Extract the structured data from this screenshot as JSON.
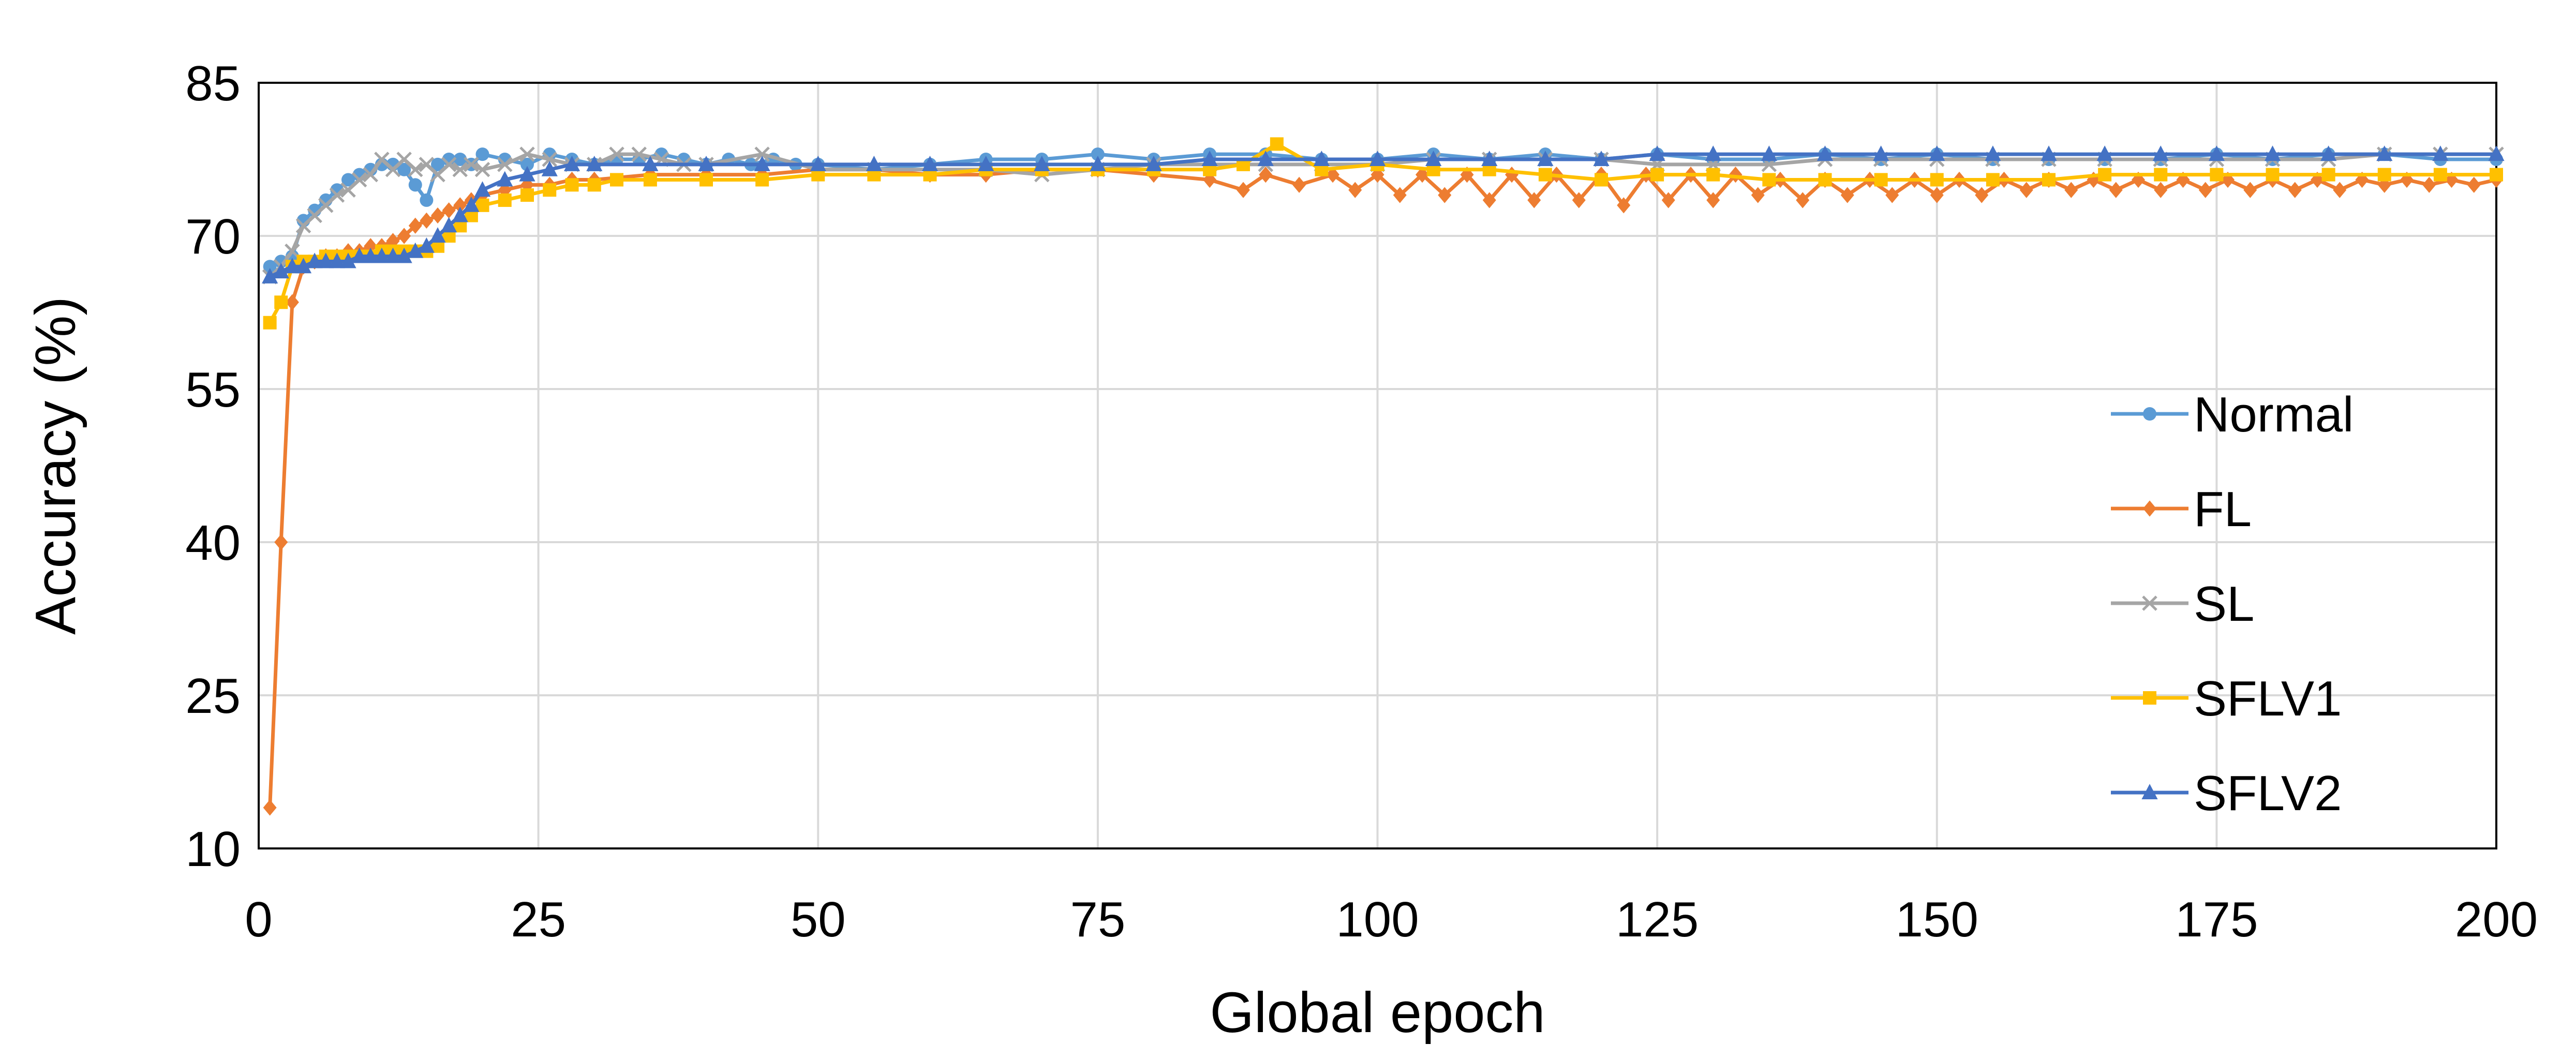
{
  "chart_data": {
    "type": "line",
    "title": "",
    "xlabel": "Global epoch",
    "ylabel": "Accuracy (%)",
    "xlim": [
      0,
      200
    ],
    "ylim": [
      10,
      85
    ],
    "x_ticks": [
      "0",
      "25",
      "50",
      "75",
      "100",
      "125",
      "150",
      "175",
      "200"
    ],
    "y_ticks": [
      "10",
      "25",
      "40",
      "55",
      "70",
      "85"
    ],
    "grid": true,
    "legend_position": "right",
    "series": [
      {
        "name": "Normal",
        "color": "#5B9BD5",
        "marker": "circle",
        "x": [
          1,
          2,
          3,
          4,
          5,
          6,
          7,
          8,
          9,
          10,
          11,
          12,
          13,
          14,
          15,
          16,
          17,
          18,
          19,
          20,
          22,
          24,
          26,
          28,
          30,
          32,
          34,
          36,
          38,
          40,
          42,
          44,
          46,
          48,
          50,
          55,
          60,
          65,
          70,
          75,
          80,
          85,
          90,
          95,
          100,
          105,
          110,
          115,
          120,
          125,
          130,
          135,
          140,
          145,
          150,
          155,
          160,
          165,
          170,
          175,
          180,
          185,
          190,
          195,
          200
        ],
        "y": [
          67,
          67.5,
          68,
          71.5,
          72.5,
          73.5,
          74.5,
          75.5,
          76,
          76.5,
          77,
          77,
          76.5,
          75,
          73.5,
          77,
          77.5,
          77.5,
          77,
          78,
          77.5,
          77,
          78,
          77.5,
          77,
          77.5,
          77.5,
          78,
          77.5,
          77,
          77.5,
          77,
          77.5,
          77,
          77,
          76.5,
          77,
          77.5,
          77.5,
          78,
          77.5,
          78,
          78,
          77.5,
          77.5,
          78,
          77.5,
          78,
          77.5,
          78,
          77.5,
          77.5,
          78,
          77.5,
          78,
          77.5,
          77.5,
          77.5,
          77.5,
          78,
          77.5,
          78,
          78,
          77.5,
          77.5
        ]
      },
      {
        "name": "FL",
        "color": "#ED7D31",
        "marker": "diamond",
        "x": [
          1,
          2,
          3,
          4,
          5,
          6,
          7,
          8,
          9,
          10,
          11,
          12,
          13,
          14,
          15,
          16,
          17,
          18,
          19,
          20,
          22,
          24,
          26,
          28,
          30,
          35,
          40,
          45,
          50,
          55,
          60,
          65,
          70,
          75,
          80,
          85,
          88,
          90,
          93,
          96,
          98,
          100,
          102,
          104,
          106,
          108,
          110,
          112,
          114,
          116,
          118,
          120,
          122,
          124,
          126,
          128,
          130,
          132,
          134,
          136,
          138,
          140,
          142,
          144,
          146,
          148,
          150,
          152,
          154,
          156,
          158,
          160,
          162,
          164,
          166,
          168,
          170,
          172,
          174,
          176,
          178,
          180,
          182,
          184,
          186,
          188,
          190,
          192,
          194,
          196,
          198,
          200
        ],
        "y": [
          14,
          40,
          63.5,
          67,
          67.5,
          68,
          68,
          68.5,
          68.5,
          69,
          69,
          69.5,
          70,
          71,
          71.5,
          72,
          72.5,
          73,
          73.5,
          74,
          74.5,
          75,
          75,
          75.5,
          75.5,
          76,
          76,
          76,
          76.5,
          76.5,
          76,
          76,
          76.5,
          76.5,
          76,
          75.5,
          74.5,
          76,
          75,
          76,
          74.5,
          76,
          74,
          76,
          74,
          76,
          73.5,
          76,
          73.5,
          76,
          73.5,
          76,
          73,
          76,
          73.5,
          76,
          73.5,
          76,
          74,
          75.5,
          73.5,
          75.5,
          74,
          75.5,
          74,
          75.5,
          74,
          75.5,
          74,
          75.5,
          74.5,
          75.5,
          74.5,
          75.5,
          74.5,
          75.5,
          74.5,
          75.5,
          74.5,
          75.5,
          74.5,
          75.5,
          74.5,
          75.5,
          74.5,
          75.5,
          75,
          75.5,
          75,
          75.5,
          75,
          75.5
        ]
      },
      {
        "name": "SL",
        "color": "#A5A5A5",
        "marker": "x",
        "x": [
          1,
          2,
          3,
          4,
          5,
          6,
          7,
          8,
          9,
          10,
          11,
          12,
          13,
          14,
          15,
          16,
          17,
          18,
          19,
          20,
          22,
          24,
          26,
          28,
          30,
          32,
          34,
          36,
          38,
          40,
          45,
          50,
          55,
          60,
          65,
          70,
          75,
          80,
          85,
          90,
          95,
          100,
          105,
          110,
          115,
          120,
          125,
          130,
          135,
          140,
          145,
          150,
          155,
          160,
          165,
          170,
          175,
          180,
          185,
          190,
          195,
          200
        ],
        "y": [
          66,
          67,
          68.5,
          71,
          72,
          73,
          74,
          74.5,
          75.5,
          76,
          77.5,
          76.5,
          77.5,
          76.5,
          77,
          76,
          77,
          76.5,
          77,
          76.5,
          77,
          78,
          77.5,
          77,
          77,
          78,
          78,
          77.5,
          77,
          77,
          78,
          76.5,
          76.5,
          76.5,
          76.5,
          76,
          76.5,
          77,
          77,
          77,
          77,
          77,
          77.5,
          77.5,
          77.5,
          77.5,
          77,
          77,
          77,
          77.5,
          77.5,
          77.5,
          77.5,
          77.5,
          77.5,
          77.5,
          77.5,
          77.5,
          77.5,
          78,
          78,
          78
        ]
      },
      {
        "name": "SFLV1",
        "color": "#FFC000",
        "marker": "square",
        "x": [
          1,
          2,
          3,
          4,
          5,
          6,
          7,
          8,
          9,
          10,
          11,
          12,
          13,
          14,
          15,
          16,
          17,
          18,
          19,
          20,
          22,
          24,
          26,
          28,
          30,
          32,
          35,
          40,
          45,
          50,
          55,
          60,
          65,
          70,
          75,
          80,
          85,
          88,
          91,
          95,
          100,
          105,
          110,
          115,
          120,
          125,
          130,
          135,
          140,
          145,
          150,
          155,
          160,
          165,
          170,
          175,
          180,
          185,
          190,
          195,
          200
        ],
        "y": [
          61.5,
          63.5,
          67,
          67.5,
          67.5,
          68,
          68,
          68,
          68,
          68,
          68.5,
          68.5,
          68.5,
          68.5,
          68.5,
          69,
          70,
          71,
          72,
          73,
          73.5,
          74,
          74.5,
          75,
          75,
          75.5,
          75.5,
          75.5,
          75.5,
          76,
          76,
          76,
          76.5,
          76.5,
          76.5,
          76.5,
          76.5,
          77,
          79,
          76.5,
          77,
          76.5,
          76.5,
          76,
          75.5,
          76,
          76,
          75.5,
          75.5,
          75.5,
          75.5,
          75.5,
          75.5,
          76,
          76,
          76,
          76,
          76,
          76,
          76,
          76
        ]
      },
      {
        "name": "SFLV2",
        "color": "#4472C4",
        "marker": "triangle",
        "x": [
          1,
          2,
          3,
          4,
          5,
          6,
          7,
          8,
          9,
          10,
          11,
          12,
          13,
          14,
          15,
          16,
          17,
          18,
          19,
          20,
          22,
          24,
          26,
          28,
          30,
          35,
          40,
          45,
          50,
          55,
          60,
          65,
          70,
          75,
          80,
          85,
          90,
          95,
          100,
          105,
          110,
          115,
          120,
          125,
          130,
          135,
          140,
          145,
          150,
          155,
          160,
          165,
          170,
          175,
          180,
          185,
          190,
          195,
          200
        ],
        "y": [
          66,
          66.5,
          67,
          67,
          67.5,
          67.5,
          67.5,
          67.5,
          68,
          68,
          68,
          68,
          68,
          68.5,
          69,
          70,
          71,
          72,
          73,
          74.5,
          75.5,
          76,
          76.5,
          77,
          77,
          77,
          77,
          77,
          77,
          77,
          77,
          77,
          77,
          77,
          77,
          77.5,
          77.5,
          77.5,
          77.5,
          77.5,
          77.5,
          77.5,
          77.5,
          78,
          78,
          78,
          78,
          78,
          78,
          78,
          78,
          78,
          78,
          78,
          78,
          78,
          78,
          78,
          78
        ]
      }
    ]
  }
}
